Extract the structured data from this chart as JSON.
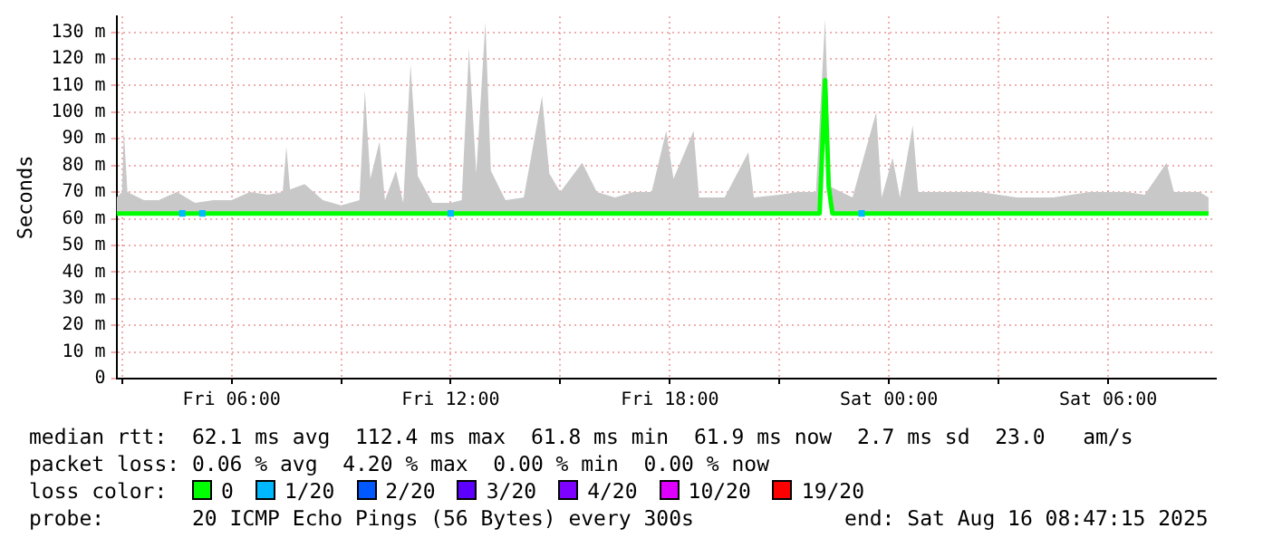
{
  "chart_data": {
    "type": "line",
    "ylabel": "Seconds",
    "xlim": [
      "2025-08-15T02:51",
      "2025-08-16T08:57"
    ],
    "ylim": [
      0,
      136
    ],
    "xticks": [
      {
        "value": "2025-08-15T03:00",
        "label": null
      },
      {
        "value": "2025-08-15T06:00",
        "label": "Fri 06:00"
      },
      {
        "value": "2025-08-15T09:00",
        "label": null
      },
      {
        "value": "2025-08-15T12:00",
        "label": "Fri 12:00"
      },
      {
        "value": "2025-08-15T15:00",
        "label": null
      },
      {
        "value": "2025-08-15T18:00",
        "label": "Fri 18:00"
      },
      {
        "value": "2025-08-15T21:00",
        "label": null
      },
      {
        "value": "2025-08-16T00:00",
        "label": "Sat 00:00"
      },
      {
        "value": "2025-08-16T03:00",
        "label": null
      },
      {
        "value": "2025-08-16T06:00",
        "label": "Sat 06:00"
      }
    ],
    "yticks": [
      {
        "value": 0,
        "label": "0"
      },
      {
        "value": 10,
        "label": "10 m"
      },
      {
        "value": 20,
        "label": "20 m"
      },
      {
        "value": 30,
        "label": "30 m"
      },
      {
        "value": 40,
        "label": "40 m"
      },
      {
        "value": 50,
        "label": "50 m"
      },
      {
        "value": 60,
        "label": "60 m"
      },
      {
        "value": 70,
        "label": "70 m"
      },
      {
        "value": 80,
        "label": "80 m"
      },
      {
        "value": 90,
        "label": "90 m"
      },
      {
        "value": 100,
        "label": "100 m"
      },
      {
        "value": 110,
        "label": "110 m"
      },
      {
        "value": 120,
        "label": "120 m"
      },
      {
        "value": 130,
        "label": "130 m"
      }
    ],
    "grid": true,
    "legend": "bottom",
    "legend_title": "loss color:",
    "series": [
      {
        "type": "area",
        "color": "#c8c8c8",
        "x": [
          "2025-08-15T02:51",
          "2025-08-15T03:00",
          "2025-08-15T03:03",
          "2025-08-15T03:09",
          "2025-08-15T03:36",
          "2025-08-15T04:00",
          "2025-08-15T04:30",
          "2025-08-15T05:00",
          "2025-08-15T05:30",
          "2025-08-15T06:00",
          "2025-08-15T06:30",
          "2025-08-15T07:00",
          "2025-08-15T07:24",
          "2025-08-15T07:30",
          "2025-08-15T07:36",
          "2025-08-15T08:00",
          "2025-08-15T08:30",
          "2025-08-15T09:00",
          "2025-08-15T09:30",
          "2025-08-15T09:39",
          "2025-08-15T09:48",
          "2025-08-15T10:03",
          "2025-08-15T10:12",
          "2025-08-15T10:30",
          "2025-08-15T10:42",
          "2025-08-15T10:54",
          "2025-08-15T11:06",
          "2025-08-15T11:30",
          "2025-08-15T12:00",
          "2025-08-15T12:18",
          "2025-08-15T12:30",
          "2025-08-15T12:42",
          "2025-08-15T12:57",
          "2025-08-15T13:06",
          "2025-08-15T13:30",
          "2025-08-15T14:00",
          "2025-08-15T14:30",
          "2025-08-15T14:42",
          "2025-08-15T15:00",
          "2025-08-15T15:36",
          "2025-08-15T16:00",
          "2025-08-15T16:30",
          "2025-08-15T17:00",
          "2025-08-15T17:30",
          "2025-08-15T17:54",
          "2025-08-15T18:06",
          "2025-08-15T18:39",
          "2025-08-15T18:48",
          "2025-08-15T19:30",
          "2025-08-15T20:09",
          "2025-08-15T20:18",
          "2025-08-15T21:00",
          "2025-08-15T21:30",
          "2025-08-15T22:00",
          "2025-08-15T22:15",
          "2025-08-15T22:24",
          "2025-08-15T23:00",
          "2025-08-15T23:39",
          "2025-08-15T23:48",
          "2025-08-16T00:06",
          "2025-08-16T00:18",
          "2025-08-16T00:39",
          "2025-08-16T00:48",
          "2025-08-16T01:30",
          "2025-08-16T02:30",
          "2025-08-16T03:30",
          "2025-08-16T04:30",
          "2025-08-16T05:30",
          "2025-08-16T06:30",
          "2025-08-16T07:00",
          "2025-08-16T07:36",
          "2025-08-16T07:48",
          "2025-08-16T08:30",
          "2025-08-16T08:45"
        ],
        "values": [
          68,
          70,
          93,
          70,
          67,
          67,
          70,
          66,
          67,
          67,
          70,
          69,
          70,
          87,
          71,
          73,
          67,
          65,
          67,
          108,
          75,
          89,
          67,
          78,
          66,
          118,
          76,
          66,
          66,
          67,
          124,
          77,
          134,
          78,
          67,
          68,
          106,
          77,
          70,
          81,
          70,
          68,
          70,
          70,
          93,
          75,
          93,
          68,
          68,
          85,
          68,
          69,
          70,
          70,
          135,
          72,
          68,
          100,
          68,
          83,
          68,
          95,
          70,
          70,
          70,
          68,
          68,
          70,
          70,
          69,
          81,
          70,
          70,
          68
        ]
      },
      {
        "name": "0",
        "color": "#00ff00",
        "x": [
          "2025-08-15T02:51",
          "2025-08-15T22:06",
          "2025-08-15T22:15",
          "2025-08-15T22:21",
          "2025-08-15T22:27",
          "2025-08-16T08:45"
        ],
        "values": [
          62,
          62,
          112,
          72,
          62,
          62
        ]
      },
      {
        "name": "1/20",
        "type": "scatter",
        "marker": "square",
        "color": "#00b8ff",
        "x": [
          "2025-08-15T04:39",
          "2025-08-15T05:12",
          "2025-08-15T12:00",
          "2025-08-15T23:15"
        ],
        "values": [
          62,
          62,
          62,
          62
        ]
      },
      {
        "name": "2/20",
        "color": "#0059ff"
      },
      {
        "name": "3/20",
        "color": "#5e00ff"
      },
      {
        "name": "4/20",
        "color": "#7e00ff"
      },
      {
        "name": "10/20",
        "color": "#dd00ff"
      },
      {
        "name": "19/20",
        "color": "#ff0000"
      }
    ],
    "annotations": [
      "median rtt:  62.1 ms avg  112.4 ms max  61.8 ms min  61.9 ms now  2.7 ms sd  23.0   am/s",
      "packet loss: 0.06 % avg  4.20 % max  0.00 % min  0.00 % now",
      "probe:       20 ICMP Echo Pings (56 Bytes) every 300s            end: Sat Aug 16 08:47:15 2025"
    ]
  }
}
